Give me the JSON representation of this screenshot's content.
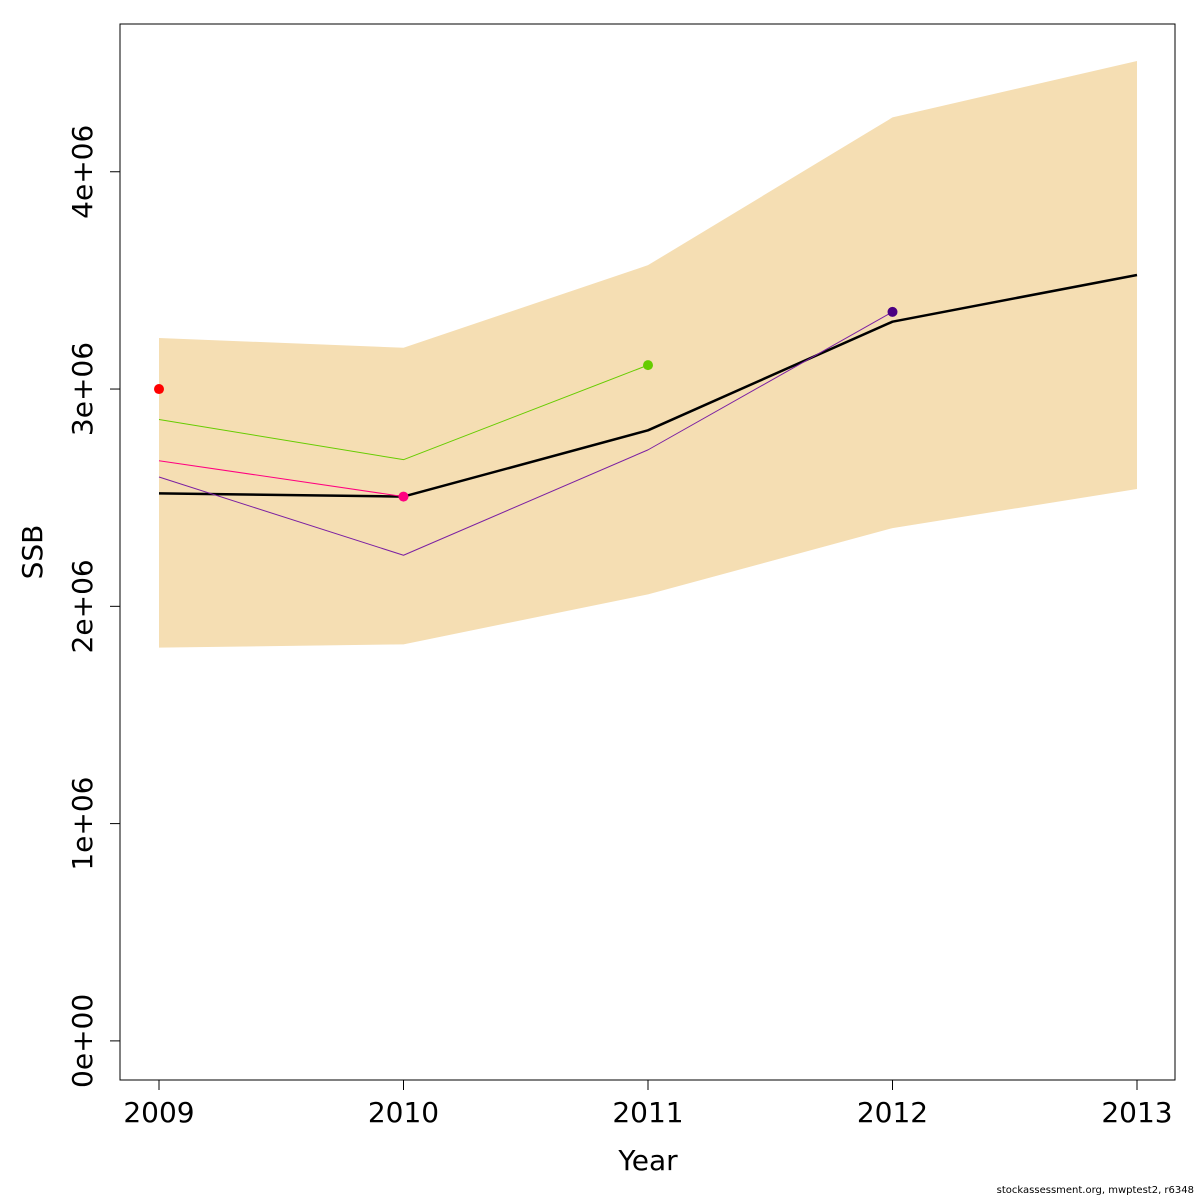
{
  "chart_data": {
    "type": "line",
    "title": "",
    "xlabel": "Year",
    "ylabel": "SSB",
    "x": [
      2009,
      2010,
      2011,
      2012,
      2013
    ],
    "x_tick_labels": [
      "2009",
      "2010",
      "2011",
      "2012",
      "2013"
    ],
    "ylim": [
      -180000,
      4680000
    ],
    "y_ticks": [
      0,
      1000000,
      2000000,
      3000000,
      4000000
    ],
    "y_tick_labels": [
      "0e+00",
      "1e+06",
      "2e+06",
      "3e+06",
      "4e+06"
    ],
    "grid": false,
    "legend": "none",
    "confidence_band": {
      "color": "#F5DEB3",
      "lower": [
        1810000,
        1825000,
        2055000,
        2360000,
        2540000
      ],
      "upper": [
        3235000,
        3190000,
        3570000,
        4250000,
        4510000
      ]
    },
    "series": [
      {
        "x": [
          2009,
          2010,
          2011,
          2012,
          2013
        ],
        "values": [
          2520000,
          2505000,
          2810000,
          3310000,
          3525000
        ],
        "color": "#000000",
        "width": 2.5,
        "end_point": false
      },
      {
        "x": [
          2009,
          2010,
          2011
        ],
        "values": [
          2860000,
          2675000,
          3110000
        ],
        "color": "#66CC00",
        "width": 1,
        "end_point": true
      },
      {
        "x": [
          2009,
          2010
        ],
        "values": [
          2670000,
          2505000
        ],
        "color": "#FF0080",
        "width": 1,
        "end_point": true
      },
      {
        "x": [
          2009,
          2010,
          2011,
          2012
        ],
        "values": [
          2595000,
          2235000,
          2720000,
          3355000
        ],
        "color": "#7B1FA2",
        "end_color": "#4B0082",
        "width": 1,
        "end_point": true
      },
      {
        "x": [
          2009
        ],
        "values": [
          3000000
        ],
        "color": "#FF0000",
        "width": 1,
        "end_point": true
      }
    ]
  },
  "footer": "stockassessment.org, mwptest2, r6348"
}
